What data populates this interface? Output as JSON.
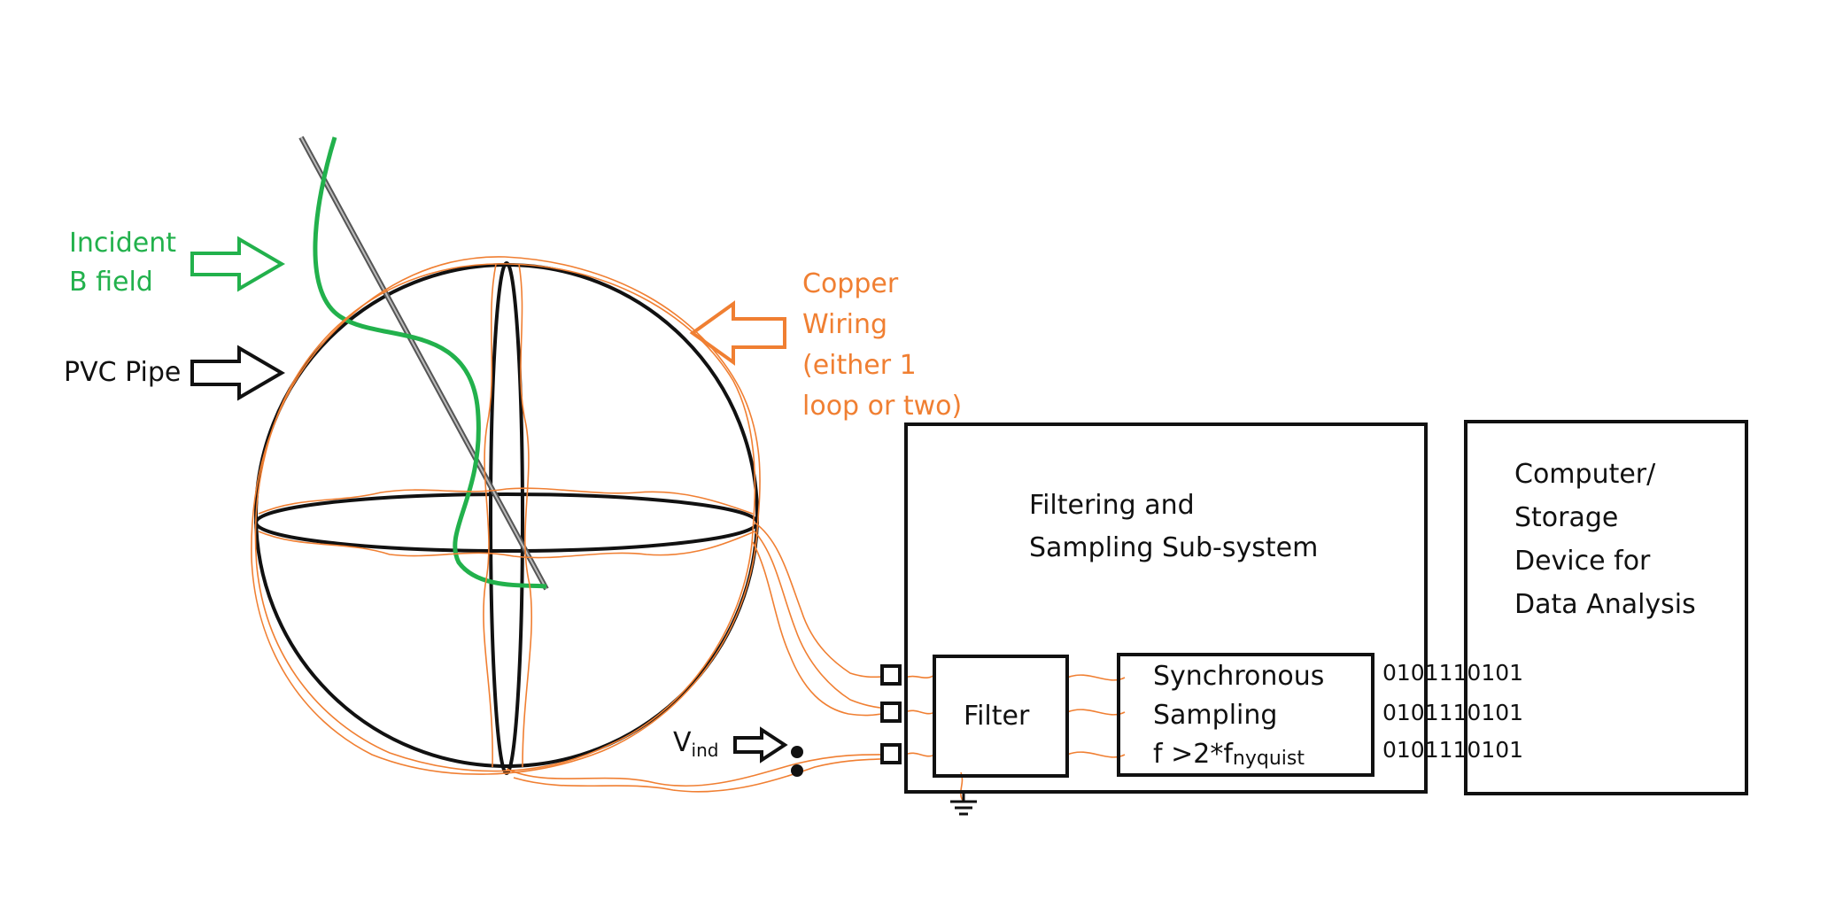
{
  "labels": {
    "incident_b_field": [
      "Incident",
      "B field"
    ],
    "pvc_pipe": "PVC Pipe",
    "copper_wiring": [
      "Copper",
      "Wiring",
      "(either 1",
      "loop or two)"
    ],
    "v_ind": {
      "main": "V",
      "sub": "ind"
    },
    "filtering_subsystem": [
      "Filtering and",
      "Sampling Sub-system"
    ],
    "filter": "Filter",
    "synchronous_sampling": {
      "line1": "Synchronous",
      "line2": "Sampling",
      "line3_main": "f >2*f",
      "line3_sub": "nyquist"
    },
    "computer": [
      "Computer/",
      "Storage",
      "Device for",
      "Data Analysis"
    ],
    "bitstreams": [
      "0101110101",
      "0101110101",
      "0101110101"
    ]
  },
  "colors": {
    "green": "#22b14c",
    "orange": "#f07f32",
    "black": "#111111",
    "gray": "#888888"
  },
  "icons": [
    "block-arrow-right",
    "block-arrow-left",
    "ground-symbol"
  ]
}
